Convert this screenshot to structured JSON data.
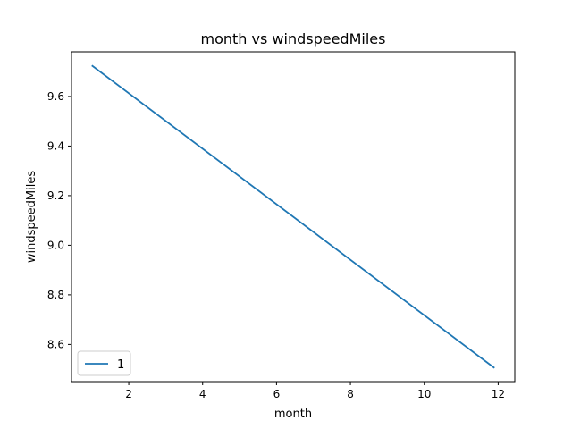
{
  "chart_data": {
    "type": "line",
    "title": "month vs windspeedMiles",
    "xlabel": "month",
    "ylabel": "windspeedMiles",
    "xlim": [
      0.45,
      12.45
    ],
    "ylim": [
      8.45,
      9.78
    ],
    "xticks": [
      2,
      4,
      6,
      8,
      10,
      12
    ],
    "yticks": [
      8.6,
      8.8,
      9.0,
      9.2,
      9.4,
      9.6
    ],
    "xtick_labels": [
      "2",
      "4",
      "6",
      "8",
      "10",
      "12"
    ],
    "ytick_labels": [
      "8.6",
      "8.8",
      "9.0",
      "9.2",
      "9.4",
      "9.6"
    ],
    "grid": false,
    "legend": "lower-left",
    "series": [
      {
        "name": "1",
        "color": "#1f77b4",
        "x": [
          1,
          11.9
        ],
        "y": [
          9.725,
          8.505
        ]
      }
    ]
  }
}
